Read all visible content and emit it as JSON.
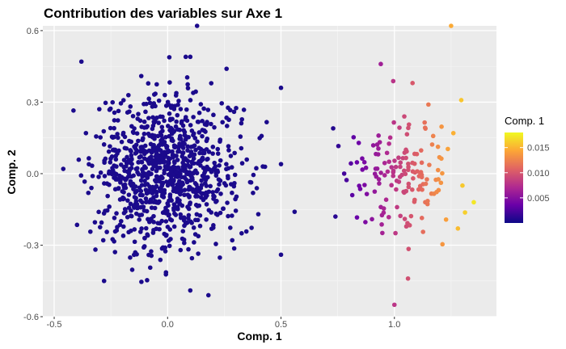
{
  "chart_data": {
    "type": "scatter",
    "title": "Contribution des variables sur Axe 1",
    "xlabel": "Comp. 1",
    "ylabel": "Comp. 2",
    "xlim": [
      -0.55,
      1.45
    ],
    "ylim": [
      -0.6,
      0.62
    ],
    "x_ticks": [
      -0.5,
      0.0,
      0.5,
      1.0
    ],
    "x_tick_labels": [
      "-0.5",
      "0.0",
      "0.5",
      "1.0"
    ],
    "y_ticks": [
      -0.6,
      -0.3,
      0.0,
      0.3,
      0.6
    ],
    "y_tick_labels": [
      "-0.6",
      "-0.3",
      "0.0",
      "0.3",
      "0.6"
    ],
    "grid": true,
    "legend": {
      "title": "Comp. 1",
      "placement": "right",
      "type": "colorbar",
      "range": [
        0.0,
        0.018
      ],
      "ticks": [
        0.005,
        0.01,
        0.015
      ],
      "tick_labels": [
        "0.005",
        "0.010",
        "0.015"
      ],
      "colormap": [
        "#0d0887",
        "#6a00a8",
        "#b12a90",
        "#e16462",
        "#fca636",
        "#f0f921"
      ]
    },
    "cluster_main": {
      "seed": 7,
      "count": 950,
      "center": [
        0.0,
        0.0
      ],
      "sd": [
        0.16,
        0.16
      ],
      "color": "#1b0a8c",
      "points": [
        [
          0.13,
          0.62
        ],
        [
          -0.38,
          0.47
        ],
        [
          0.08,
          0.49
        ],
        [
          0.1,
          0.49
        ],
        [
          0.5,
          0.36
        ],
        [
          0.5,
          0.04
        ],
        [
          0.56,
          -0.16
        ],
        [
          0.5,
          -0.34
        ],
        [
          0.18,
          -0.51
        ],
        [
          -0.46,
          0.02
        ],
        [
          -0.28,
          -0.45
        ],
        [
          0.1,
          -0.49
        ],
        [
          0.42,
          0.03
        ],
        [
          0.4,
          -0.17
        ],
        [
          -0.36,
          0.17
        ],
        [
          0.26,
          0.44
        ]
      ]
    },
    "cluster_right": {
      "seed": 13,
      "count": 150,
      "center": [
        1.03,
        -0.01
      ],
      "sd": [
        0.12,
        0.12
      ],
      "points": [
        [
          1.25,
          0.62
        ],
        [
          0.94,
          0.46
        ],
        [
          1.35,
          -0.12
        ],
        [
          1.3,
          -0.05
        ],
        [
          1.0,
          -0.55
        ],
        [
          1.06,
          -0.44
        ],
        [
          0.73,
          0.19
        ],
        [
          0.74,
          -0.18
        ],
        [
          1.28,
          -0.23
        ],
        [
          1.26,
          0.17
        ],
        [
          1.08,
          0.38
        ],
        [
          1.15,
          0.29
        ]
      ]
    }
  }
}
